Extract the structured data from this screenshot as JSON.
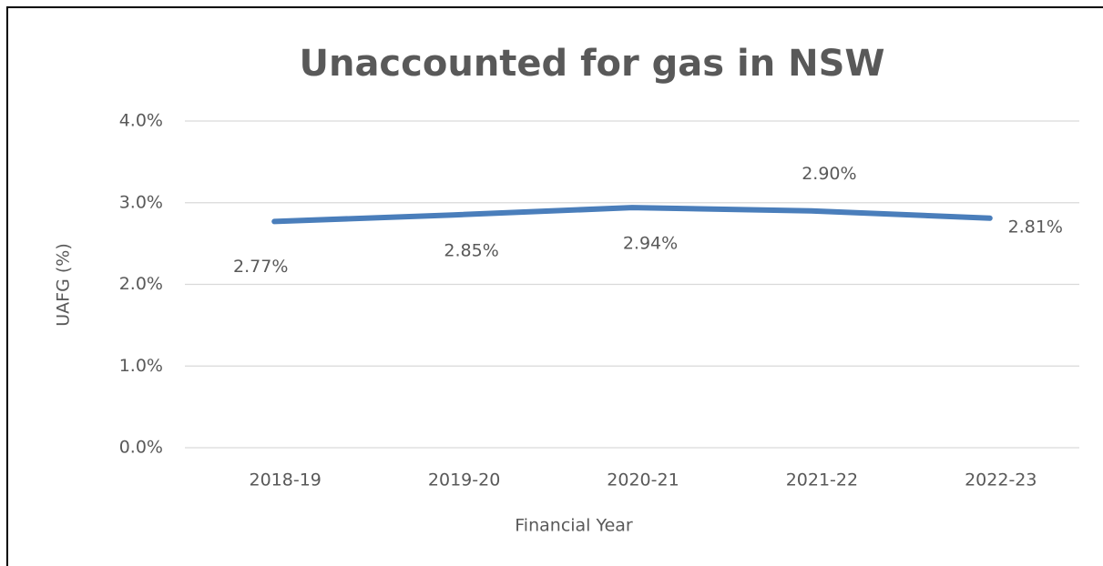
{
  "chart_data": {
    "type": "line",
    "title": "Unaccounted for gas in NSW",
    "x_label": "Financial Year",
    "y_label": "UAFG (%)",
    "categories": [
      "2018-19",
      "2019-20",
      "2020-21",
      "2021-22",
      "2022-23"
    ],
    "series": [
      {
        "name": "UAFG",
        "color": "#4a7ebb",
        "values": [
          2.77,
          2.85,
          2.94,
          2.9,
          2.81
        ],
        "value_labels": [
          "2.77%",
          "2.85%",
          "2.94%",
          "2.90%",
          "2.81%"
        ]
      }
    ],
    "ylim": [
      0,
      4
    ],
    "yticks": [
      {
        "value": 0,
        "label": "0.0%"
      },
      {
        "value": 1,
        "label": "1.0%"
      },
      {
        "value": 2,
        "label": "2.0%"
      },
      {
        "value": 3,
        "label": "3.0%"
      },
      {
        "value": 4,
        "label": "4.0%"
      }
    ],
    "grid": true
  }
}
